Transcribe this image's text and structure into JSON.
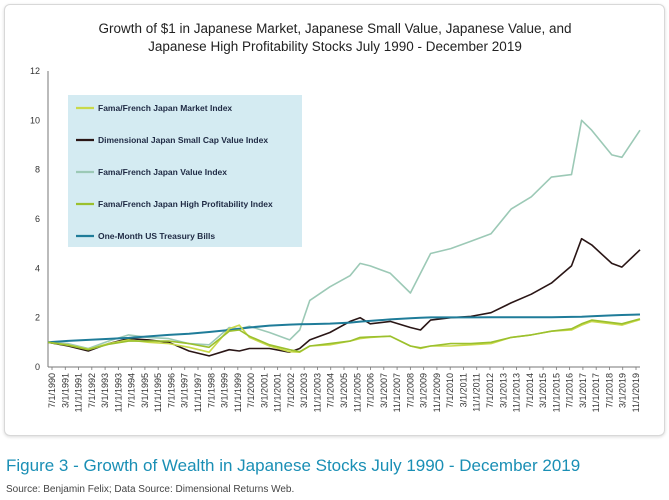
{
  "chart_data": {
    "type": "line",
    "title": "Growth of $1 in Japanese Market, Japanese Small Value, Japanese Value, and Japanese High Profitability Stocks July 1990 - December 2019",
    "title_lines": [
      "Growth of $1 in Japanese Market, Japanese Small Value, Japanese Value, and",
      "Japanese High Profitability Stocks July 1990 - December 2019"
    ],
    "xlabel": "",
    "ylabel": "",
    "ylim": [
      0,
      12
    ],
    "yticks": [
      "0",
      "2",
      "4",
      "6",
      "8",
      "10",
      "12"
    ],
    "grid": false,
    "legend_placement": "top-left",
    "x_tick_labels": [
      "7/1/1990",
      "3/1/1991",
      "11/1/1991",
      "7/1/1992",
      "3/1/1993",
      "11/1/1993",
      "7/1/1994",
      "3/1/1995",
      "11/1/1995",
      "7/1/1996",
      "3/1/1997",
      "11/1/1997",
      "7/1/1998",
      "3/1/1999",
      "11/1/1999",
      "7/1/2000",
      "3/1/2001",
      "11/1/2001",
      "7/1/2002",
      "3/1/2003",
      "11/1/2003",
      "7/1/2004",
      "3/1/2005",
      "11/1/2005",
      "7/1/2006",
      "3/1/2007",
      "11/1/2007",
      "7/1/2008",
      "3/1/2009",
      "11/1/2009",
      "7/1/2010",
      "3/1/2011",
      "11/1/2011",
      "7/1/2012",
      "3/1/2013",
      "11/1/2013",
      "7/1/2014",
      "3/1/2015",
      "11/1/2015",
      "7/1/2016",
      "3/1/2017",
      "11/1/2017",
      "7/1/2018",
      "3/1/2019",
      "11/1/2019"
    ],
    "x": [
      1990.5,
      1991.5,
      1992.5,
      1993.5,
      1994.5,
      1995.5,
      1996.5,
      1997.5,
      1998.5,
      1999.5,
      2000.0,
      2000.5,
      2001.5,
      2002.5,
      2003.0,
      2003.5,
      2004.5,
      2005.5,
      2006.0,
      2006.5,
      2007.5,
      2008.5,
      2009.0,
      2009.5,
      2010.5,
      2011.5,
      2012.5,
      2013.5,
      2014.5,
      2015.5,
      2016.5,
      2017.0,
      2017.5,
      2018.5,
      2019.0,
      2019.9
    ],
    "series": [
      {
        "name": "Fama/French Japan Market Index",
        "color": "#c9d94a",
        "values": [
          1.0,
          0.9,
          0.72,
          0.95,
          1.1,
          1.0,
          0.95,
          0.8,
          0.6,
          1.55,
          1.7,
          1.2,
          0.85,
          0.62,
          0.6,
          0.85,
          0.9,
          1.05,
          1.15,
          1.2,
          1.25,
          0.85,
          0.75,
          0.85,
          0.85,
          0.9,
          0.95,
          1.2,
          1.3,
          1.45,
          1.5,
          1.7,
          1.85,
          1.75,
          1.7,
          1.92
        ]
      },
      {
        "name": "Dimensional Japan Small Cap Value Index",
        "color": "#2a1616",
        "values": [
          1.0,
          0.85,
          0.65,
          0.95,
          1.15,
          1.1,
          1.0,
          0.65,
          0.45,
          0.7,
          0.65,
          0.75,
          0.75,
          0.6,
          0.75,
          1.1,
          1.4,
          1.85,
          2.0,
          1.75,
          1.85,
          1.6,
          1.5,
          1.9,
          2.0,
          2.05,
          2.2,
          2.6,
          2.95,
          3.4,
          4.1,
          5.2,
          4.95,
          4.2,
          4.05,
          4.75
        ]
      },
      {
        "name": "Fama/French Japan Value Index",
        "color": "#9cc9b6",
        "values": [
          1.0,
          0.95,
          0.75,
          1.05,
          1.3,
          1.2,
          1.15,
          0.95,
          0.9,
          1.6,
          1.55,
          1.65,
          1.4,
          1.1,
          1.5,
          2.7,
          3.25,
          3.7,
          4.2,
          4.1,
          3.8,
          3.0,
          3.8,
          4.6,
          4.8,
          5.1,
          5.4,
          6.4,
          6.9,
          7.7,
          7.8,
          10.0,
          9.6,
          8.6,
          8.5,
          9.6
        ]
      },
      {
        "name": "Fama/French Japan High Profitability Index",
        "color": "#9bc02e",
        "values": [
          1.0,
          0.88,
          0.7,
          0.92,
          1.05,
          1.05,
          1.05,
          0.95,
          0.8,
          1.45,
          1.5,
          1.25,
          0.9,
          0.7,
          0.62,
          0.85,
          0.95,
          1.05,
          1.2,
          1.22,
          1.25,
          0.85,
          0.78,
          0.85,
          0.95,
          0.95,
          1.0,
          1.2,
          1.3,
          1.45,
          1.55,
          1.75,
          1.9,
          1.8,
          1.75,
          1.95
        ]
      },
      {
        "name": "One-Month US Treasury Bills",
        "color": "#1f7c99",
        "values": [
          1.0,
          1.06,
          1.1,
          1.14,
          1.18,
          1.24,
          1.3,
          1.35,
          1.42,
          1.5,
          1.55,
          1.6,
          1.68,
          1.72,
          1.73,
          1.74,
          1.76,
          1.8,
          1.84,
          1.87,
          1.93,
          1.98,
          2.0,
          2.01,
          2.01,
          2.01,
          2.02,
          2.02,
          2.02,
          2.02,
          2.03,
          2.04,
          2.06,
          2.09,
          2.11,
          2.13
        ]
      }
    ]
  },
  "caption": "Figure 3 - Growth of Wealth in Japanese Stocks July 1990 - December 2019",
  "source": "Source: Benjamin Felix; Data Source: Dimensional Returns Web.",
  "colors": {
    "legend_bg": "#d4ebf2",
    "caption": "#1a8fb5",
    "axis": "#777777"
  }
}
